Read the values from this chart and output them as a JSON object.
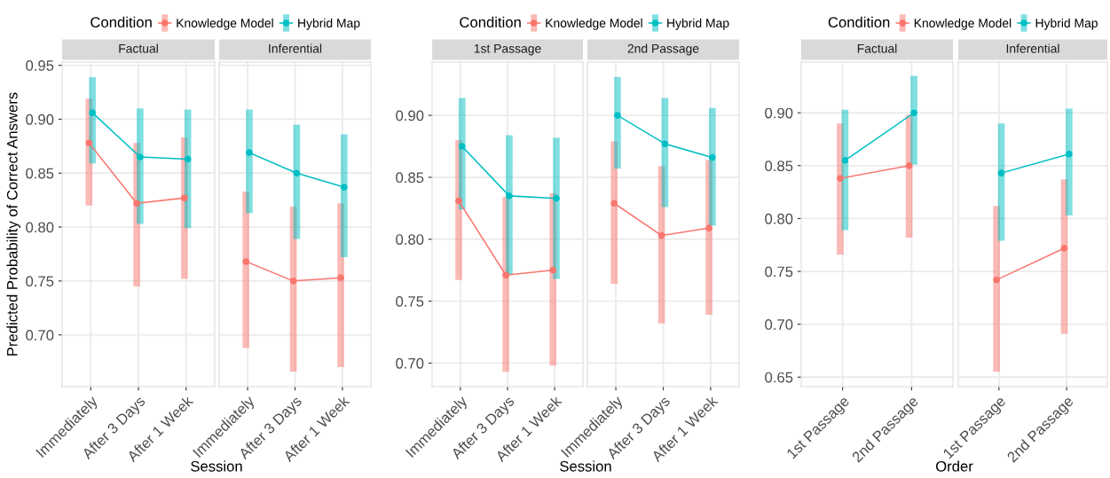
{
  "chart_data": [
    {
      "type": "line",
      "title": "Factual",
      "ylabel": "Predicted Probability of Correct Answers",
      "xlabel": "Session",
      "legend": "top",
      "legend_title": "Condition",
      "grid": true,
      "marker": "circle",
      "categories": [
        "Immediately",
        "After 3 Days",
        "After 1 Week"
      ],
      "ylim": [
        0.652,
        0.953
      ],
      "yticks": [
        {
          "value": 0.7,
          "label": "0.70"
        },
        0.75,
        {
          "value": 0.8,
          "label": "0.80"
        },
        0.85,
        {
          "value": 0.9,
          "label": "0.90"
        },
        0.95
      ],
      "series": [
        {
          "name": "Knowledge Model",
          "color": "#f8766d",
          "values": [
            0.878,
            0.822,
            0.827
          ],
          "errors": [
            [
              0.82,
              0.919
            ],
            [
              0.745,
              0.878
            ],
            [
              0.752,
              0.883
            ]
          ]
        },
        {
          "name": "Hybrid Map",
          "color": "#00bfc4",
          "values": [
            0.906,
            0.865,
            0.863
          ],
          "errors": [
            [
              0.859,
              0.939
            ],
            [
              0.803,
              0.91
            ],
            [
              0.799,
              0.909
            ]
          ]
        }
      ]
    },
    {
      "type": "line",
      "title": "Inferential",
      "grid": true,
      "marker": "circle",
      "tick_labels": "x",
      "categories": [
        "Immediately",
        "After 3 Days",
        "After 1 Week"
      ],
      "ylim": [
        0.652,
        0.953
      ],
      "series": [
        {
          "color": "#f8766d",
          "values": [
            0.768,
            0.75,
            0.753
          ],
          "errors": [
            [
              0.688,
              0.833
            ],
            [
              0.666,
              0.819
            ],
            [
              0.67,
              0.822
            ]
          ]
        },
        {
          "color": "#00bfc4",
          "values": [
            0.869,
            0.85,
            0.837
          ],
          "errors": [
            [
              0.813,
              0.909
            ],
            [
              0.789,
              0.895
            ],
            [
              0.772,
              0.886
            ]
          ]
        }
      ]
    },
    {
      "type": "line",
      "title": "1st Passage",
      "xlabel": "Session",
      "legend": "top",
      "legend_title": "Condition",
      "grid": true,
      "marker": "circle",
      "categories": [
        "Immediately",
        "After 3 Days",
        "After 1 Week"
      ],
      "ylim": [
        0.681,
        0.943
      ],
      "yticks": [
        {
          "value": 0.7,
          "label": "0.70"
        },
        0.75,
        {
          "value": 0.8,
          "label": "0.80"
        },
        0.85,
        {
          "value": 0.9,
          "label": "0.90"
        }
      ],
      "series": [
        {
          "name": "Knowledge Model",
          "color": "#f8766d",
          "values": [
            0.831,
            0.771,
            0.775
          ],
          "errors": [
            [
              0.767,
              0.88
            ],
            [
              0.693,
              0.834
            ],
            [
              0.698,
              0.837
            ]
          ]
        },
        {
          "name": "Hybrid Map",
          "color": "#00bfc4",
          "values": [
            0.875,
            0.835,
            0.833
          ],
          "errors": [
            [
              0.824,
              0.914
            ],
            [
              0.772,
              0.884
            ],
            [
              0.768,
              0.882
            ]
          ]
        }
      ]
    },
    {
      "type": "line",
      "title": "2nd Passage",
      "grid": true,
      "marker": "circle",
      "tick_labels": "x",
      "categories": [
        "Immediately",
        "After 3 Days",
        "After 1 Week"
      ],
      "ylim": [
        0.681,
        0.943
      ],
      "series": [
        {
          "color": "#f8766d",
          "values": [
            0.829,
            0.803,
            0.809
          ],
          "errors": [
            [
              0.764,
              0.879
            ],
            [
              0.732,
              0.859
            ],
            [
              0.739,
              0.864
            ]
          ]
        },
        {
          "color": "#00bfc4",
          "values": [
            0.9,
            0.877,
            0.866
          ],
          "errors": [
            [
              0.857,
              0.931
            ],
            [
              0.826,
              0.914
            ],
            [
              0.811,
              0.906
            ]
          ]
        }
      ]
    },
    {
      "type": "line",
      "title": "Factual",
      "xlabel": "Order",
      "legend": "top",
      "legend_title": "Condition",
      "grid": true,
      "marker": "circle",
      "categories": [
        "1st Passage",
        "2nd Passage"
      ],
      "ylim": [
        0.641,
        0.948
      ],
      "yticks": [
        0.65,
        {
          "value": 0.7,
          "label": "0.70"
        },
        0.75,
        {
          "value": 0.8,
          "label": "0.80"
        },
        0.85,
        {
          "value": 0.9,
          "label": "0.90"
        }
      ],
      "series": [
        {
          "name": "Knowledge Model",
          "color": "#f8766d",
          "values": [
            0.838,
            0.85
          ],
          "errors": [
            [
              0.766,
              0.89
            ],
            [
              0.782,
              0.898
            ]
          ]
        },
        {
          "name": "Hybrid Map",
          "color": "#00bfc4",
          "values": [
            0.855,
            0.9
          ],
          "errors": [
            [
              0.789,
              0.903
            ],
            [
              0.851,
              0.935
            ]
          ]
        }
      ]
    },
    {
      "type": "line",
      "title": "Inferential",
      "grid": true,
      "marker": "circle",
      "tick_labels": "x",
      "categories": [
        "1st Passage",
        "2nd Passage"
      ],
      "ylim": [
        0.641,
        0.948
      ],
      "series": [
        {
          "color": "#f8766d",
          "values": [
            0.742,
            0.772
          ],
          "errors": [
            [
              0.655,
              0.812
            ],
            [
              0.691,
              0.837
            ]
          ]
        },
        {
          "color": "#00bfc4",
          "values": [
            0.843,
            0.861
          ],
          "errors": [
            [
              0.779,
              0.89
            ],
            [
              0.803,
              0.904
            ]
          ]
        }
      ]
    }
  ]
}
